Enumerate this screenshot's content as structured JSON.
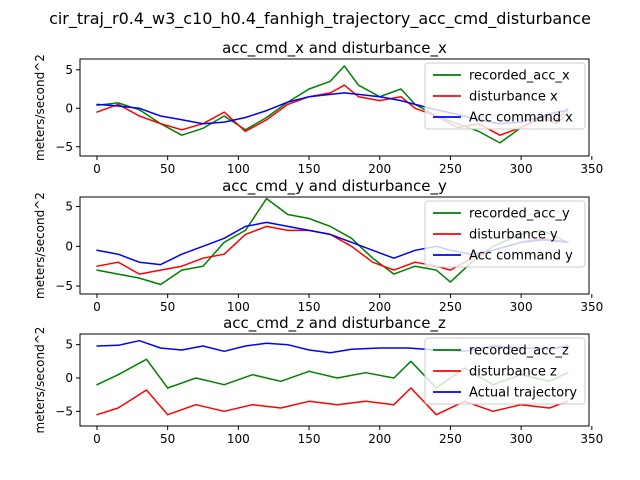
{
  "figure": {
    "title": "cir_traj_r0.4_w3_c10_h0.4_fanhigh_trajectory_acc_cmd_disturbance"
  },
  "chart_data": [
    {
      "type": "line",
      "title": "acc_cmd_x and disturbance_x",
      "xlabel": "",
      "ylabel": "meters/second^2",
      "xlim": [
        -12,
        348
      ],
      "ylim": [
        -6.2,
        6.4
      ],
      "xticks": [
        "0",
        "50",
        "100",
        "150",
        "200",
        "250",
        "300",
        "350"
      ],
      "yticks": [
        "-5",
        "0",
        "5"
      ],
      "legend_position": "top-right",
      "series": [
        {
          "name": "recorded_acc_x",
          "color": "#008000",
          "x": [
            0,
            15,
            30,
            45,
            60,
            75,
            90,
            105,
            120,
            135,
            150,
            165,
            175,
            185,
            200,
            215,
            225,
            240,
            255,
            270,
            285,
            300,
            315,
            325,
            333
          ],
          "y": [
            0.4,
            0.7,
            -0.2,
            -2.0,
            -3.5,
            -2.6,
            -1.0,
            -2.8,
            -1.2,
            0.8,
            2.5,
            3.5,
            5.5,
            3.0,
            1.5,
            2.5,
            0.5,
            -1.0,
            -2.0,
            -3.0,
            -4.5,
            -2.5,
            -1.2,
            -2.0,
            -0.6
          ]
        },
        {
          "name": "disturbance x",
          "color": "#ff0000",
          "x": [
            0,
            15,
            30,
            45,
            60,
            75,
            90,
            105,
            120,
            135,
            150,
            165,
            175,
            185,
            200,
            215,
            225,
            240,
            255,
            270,
            285,
            300,
            315,
            325,
            333
          ],
          "y": [
            -0.5,
            0.5,
            -1.0,
            -2.0,
            -2.8,
            -2.0,
            -0.5,
            -3.0,
            -1.5,
            0.5,
            1.5,
            2.0,
            3.0,
            1.5,
            1.0,
            1.5,
            0.0,
            -1.0,
            -2.5,
            -2.0,
            -3.5,
            -2.5,
            -1.0,
            -1.5,
            0.0
          ]
        },
        {
          "name": "Acc command x",
          "color": "#0000ff",
          "x": [
            0,
            15,
            30,
            45,
            60,
            75,
            90,
            105,
            120,
            135,
            150,
            165,
            175,
            185,
            200,
            215,
            225,
            240,
            255,
            270,
            285,
            300,
            315,
            325,
            333
          ],
          "y": [
            0.5,
            0.3,
            0.0,
            -1.0,
            -1.5,
            -2.0,
            -1.8,
            -1.2,
            -0.3,
            0.8,
            1.5,
            1.8,
            2.0,
            1.8,
            1.5,
            1.0,
            0.5,
            -0.2,
            -0.8,
            -1.5,
            -2.0,
            -1.8,
            -1.0,
            -0.5,
            -0.3
          ]
        }
      ]
    },
    {
      "type": "line",
      "title": "acc_cmd_y and disturbance_y",
      "xlabel": "",
      "ylabel": "meters/second^2",
      "xlim": [
        -12,
        348
      ],
      "ylim": [
        -6.0,
        6.2
      ],
      "xticks": [
        "0",
        "50",
        "100",
        "150",
        "200",
        "250",
        "300",
        "350"
      ],
      "yticks": [
        "-5",
        "0",
        "5"
      ],
      "legend_position": "top-right",
      "series": [
        {
          "name": "recorded_acc_y",
          "color": "#008000",
          "x": [
            0,
            15,
            30,
            45,
            60,
            75,
            90,
            105,
            120,
            135,
            150,
            165,
            180,
            195,
            210,
            225,
            240,
            250,
            265,
            280,
            300,
            315,
            333
          ],
          "y": [
            -3.0,
            -3.5,
            -4.0,
            -4.8,
            -3.0,
            -2.5,
            0.5,
            2.0,
            6.0,
            4.0,
            3.5,
            2.5,
            1.0,
            -1.5,
            -3.5,
            -2.5,
            -3.0,
            -4.5,
            -2.0,
            0.0,
            1.5,
            2.0,
            0.5
          ]
        },
        {
          "name": "disturbance y",
          "color": "#ff0000",
          "x": [
            0,
            15,
            30,
            45,
            60,
            75,
            90,
            105,
            120,
            135,
            150,
            165,
            180,
            195,
            210,
            225,
            240,
            250,
            265,
            280,
            300,
            315,
            333
          ],
          "y": [
            -2.5,
            -2.0,
            -3.5,
            -3.0,
            -2.5,
            -1.5,
            -1.0,
            1.5,
            2.5,
            2.0,
            2.0,
            1.5,
            0.0,
            -2.0,
            -3.0,
            -2.0,
            -2.5,
            -3.0,
            -1.5,
            -0.5,
            0.5,
            1.0,
            0.5
          ]
        },
        {
          "name": "Acc command y",
          "color": "#0000ff",
          "x": [
            0,
            15,
            30,
            45,
            60,
            75,
            90,
            105,
            120,
            135,
            150,
            165,
            180,
            195,
            210,
            225,
            240,
            250,
            265,
            280,
            300,
            315,
            333
          ],
          "y": [
            -0.5,
            -1.0,
            -2.0,
            -2.3,
            -1.0,
            0.0,
            1.0,
            2.5,
            3.0,
            2.5,
            2.0,
            1.5,
            0.5,
            -0.5,
            -1.5,
            -0.5,
            0.0,
            -0.5,
            -1.0,
            -0.5,
            0.5,
            0.8,
            0.5
          ]
        }
      ]
    },
    {
      "type": "line",
      "title": "acc_cmd_z and disturbance_z",
      "xlabel": "",
      "ylabel": "meters/second^2",
      "xlim": [
        -12,
        348
      ],
      "ylim": [
        -7.2,
        6.6
      ],
      "xticks": [
        "0",
        "50",
        "100",
        "150",
        "200",
        "250",
        "300",
        "350"
      ],
      "yticks": [
        "-5",
        "0",
        "5"
      ],
      "legend_position": "top-right",
      "series": [
        {
          "name": "recorded_acc_z",
          "color": "#008000",
          "x": [
            0,
            15,
            35,
            50,
            70,
            90,
            110,
            130,
            150,
            170,
            190,
            210,
            222,
            240,
            260,
            280,
            300,
            320,
            333
          ],
          "y": [
            -1.0,
            0.5,
            2.8,
            -1.5,
            0.0,
            -1.0,
            0.5,
            -0.5,
            1.0,
            0.0,
            0.8,
            0.0,
            2.5,
            -1.5,
            1.5,
            -1.0,
            0.5,
            -0.5,
            0.8
          ]
        },
        {
          "name": "disturbance z",
          "color": "#ff0000",
          "x": [
            0,
            15,
            35,
            50,
            70,
            90,
            110,
            130,
            150,
            170,
            190,
            210,
            222,
            240,
            260,
            280,
            300,
            320,
            333
          ],
          "y": [
            -5.5,
            -4.5,
            -1.8,
            -5.5,
            -4.0,
            -5.0,
            -4.0,
            -4.5,
            -3.5,
            -4.0,
            -3.5,
            -4.0,
            -1.5,
            -5.5,
            -3.5,
            -5.0,
            -4.0,
            -4.5,
            -3.5
          ]
        },
        {
          "name": "Actual trajectory",
          "color": "#0000ff",
          "x": [
            0,
            15,
            30,
            45,
            60,
            75,
            90,
            105,
            120,
            135,
            150,
            165,
            180,
            200,
            220,
            240,
            260,
            280,
            300,
            320,
            333
          ],
          "y": [
            4.8,
            4.9,
            5.6,
            4.5,
            4.2,
            4.8,
            4.0,
            4.8,
            5.2,
            5.0,
            4.2,
            3.8,
            4.3,
            4.5,
            4.5,
            4.2,
            4.0,
            4.8,
            4.5,
            4.4,
            4.8
          ]
        }
      ]
    }
  ]
}
